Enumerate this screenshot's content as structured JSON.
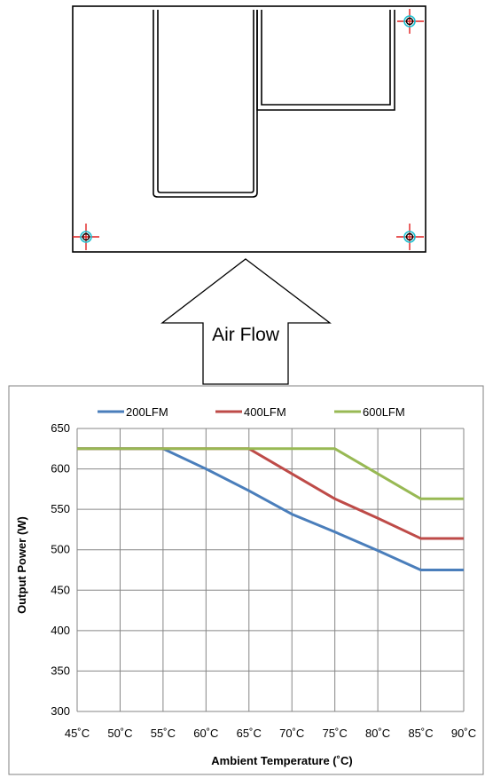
{
  "diagram": {
    "airflow_label": "Air Flow"
  },
  "chart_data": {
    "type": "line",
    "xlabel": "Ambient Temperature (˚C)",
    "ylabel": "Output Power (W)",
    "x": [
      45,
      50,
      55,
      60,
      65,
      70,
      75,
      80,
      85,
      90
    ],
    "x_tick_labels": [
      "45˚C",
      "50˚C",
      "55˚C",
      "60˚C",
      "65˚C",
      "70˚C",
      "75˚C",
      "80˚C",
      "85˚C",
      "90˚C"
    ],
    "xlim": [
      45,
      90
    ],
    "ylim": [
      300,
      650
    ],
    "y_ticks": [
      300,
      350,
      400,
      450,
      500,
      550,
      600,
      650
    ],
    "grid": true,
    "legend_position": "top",
    "series": [
      {
        "name": "200LFM",
        "color": "#4A7EBB",
        "values": [
          625,
          625,
          625,
          600,
          573,
          544,
          522,
          499,
          475,
          475
        ]
      },
      {
        "name": "400LFM",
        "color": "#BE4B48",
        "values": [
          625,
          625,
          625,
          625,
          625,
          594,
          563,
          539,
          514,
          514
        ]
      },
      {
        "name": "600LFM",
        "color": "#98B954",
        "values": [
          625,
          625,
          625,
          625,
          625,
          625,
          625,
          594,
          563,
          563
        ]
      }
    ]
  }
}
